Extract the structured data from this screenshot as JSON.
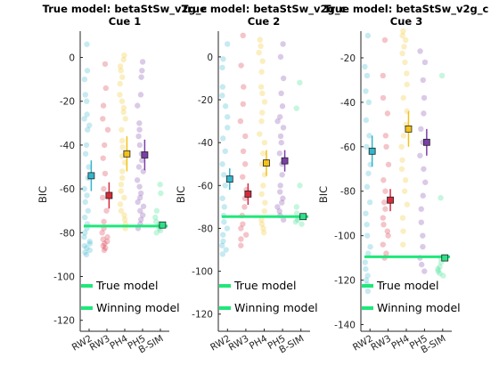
{
  "colors": {
    "RW2": "#33b5cc",
    "RW3": "#d62a3c",
    "PH4": "#f2c21b",
    "PH5": "#7a3fa8",
    "BSIM": "#2ee08a",
    "line": "#1ee87a",
    "axis": "#262626"
  },
  "legend": {
    "true_model": "True model",
    "winning_model": "Winning model"
  },
  "chart_data": [
    {
      "type": "scatter",
      "title": [
        "True model: betaStSw_v2g_c",
        "Cue 1"
      ],
      "ylabel": "BIC",
      "categories": [
        "RW2",
        "RW3",
        "PH4",
        "PH5",
        "B-SIM"
      ],
      "ylim": [
        -125,
        12
      ],
      "yticks": [
        0,
        -20,
        -40,
        -60,
        -80,
        -100,
        -120
      ],
      "true_model_line": -77,
      "means": [
        {
          "model": "RW2",
          "value": -54,
          "err": 7
        },
        {
          "model": "RW3",
          "value": -63,
          "err": 6
        },
        {
          "model": "PH4",
          "value": -44,
          "err": 8
        },
        {
          "model": "PH5",
          "value": -44.5,
          "err": 7
        },
        {
          "model": "B-SIM",
          "value": -76.5,
          "err": 1
        }
      ],
      "points": {
        "RW2": [
          6,
          -6,
          -10,
          -17,
          -20,
          -26,
          -28,
          -31,
          -33,
          -40,
          -44,
          -50,
          -55,
          -60,
          -63,
          -66,
          -70,
          -73,
          -76,
          -78,
          -80,
          -82,
          -84,
          -85,
          -86,
          -87,
          -88,
          -89,
          -90
        ],
        "RW3": [
          -3,
          -14,
          -22,
          -28,
          -33,
          -40,
          -46,
          -53,
          -60,
          -64,
          -70,
          -75,
          -78,
          -80,
          -82,
          -83,
          -84,
          -85,
          -86,
          -87,
          -88
        ],
        "PH4": [
          1,
          -1,
          -4,
          -6,
          -9,
          -12,
          -17,
          -20,
          -23,
          -25,
          -28,
          -33,
          -38,
          -41,
          -45,
          -48,
          -52,
          -55,
          -58,
          -61,
          -64,
          -67,
          -70,
          -72,
          -74,
          -76,
          -78
        ],
        "PH5": [
          -2,
          -6,
          -9,
          -17,
          -22,
          -30,
          -33,
          -36,
          -40,
          -44,
          -47,
          -50,
          -52,
          -56,
          -59,
          -62,
          -64,
          -66,
          -68,
          -70,
          -72,
          -74,
          -76,
          -78
        ],
        "B-SIM": [
          -58,
          -62,
          -70,
          -73,
          -75,
          -76,
          -77,
          -78,
          -79,
          -80
        ]
      }
    },
    {
      "type": "scatter",
      "title": [
        "True model: betaStSw_v2g_c",
        "Cue 2"
      ],
      "ylabel": "BIC",
      "categories": [
        "RW2",
        "RW3",
        "PH4",
        "PH5",
        "B-SIM"
      ],
      "ylim": [
        -128,
        12
      ],
      "yticks": [
        0,
        -20,
        -40,
        -60,
        -80,
        -100,
        -120
      ],
      "true_model_line": -74.5,
      "means": [
        {
          "model": "RW2",
          "value": -57,
          "err": 5
        },
        {
          "model": "RW3",
          "value": -64,
          "err": 5
        },
        {
          "model": "PH4",
          "value": -49.5,
          "err": 6
        },
        {
          "model": "PH5",
          "value": -48.5,
          "err": 5
        },
        {
          "model": "B-SIM",
          "value": -74.5,
          "err": 1
        }
      ],
      "points": {
        "RW2": [
          6,
          -1,
          -5,
          -14,
          -18,
          -23,
          -28,
          -33,
          -38,
          -44,
          -50,
          -55,
          -60,
          -66,
          -70,
          -74,
          -77,
          -80,
          -83,
          -86,
          -88,
          -90,
          -92
        ],
        "RW3": [
          10,
          -4,
          -14,
          -22,
          -30,
          -37,
          -44,
          -50,
          -56,
          -62,
          -66,
          -70,
          -74,
          -78,
          -80,
          -83,
          -85,
          -88
        ],
        "PH4": [
          8,
          5,
          2,
          -2,
          -7,
          -14,
          -17,
          -21,
          -26,
          -30,
          -36,
          -40,
          -45,
          -50,
          -55,
          -60,
          -64,
          -68,
          -72,
          -76,
          -78,
          -80,
          -82
        ],
        "PH5": [
          6,
          0,
          -10,
          -17,
          -23,
          -28,
          -30,
          -33,
          -37,
          -40,
          -45,
          -50,
          -55,
          -60,
          -63,
          -66,
          -68,
          -70,
          -72,
          -74,
          -76
        ],
        "B-SIM": [
          -12,
          -24,
          -60,
          -70,
          -73,
          -75,
          -76,
          -77,
          -78
        ]
      }
    },
    {
      "type": "scatter",
      "title": [
        "True model: betaStSw_v2g_c",
        "Cue 3"
      ],
      "ylabel": "BIC",
      "categories": [
        "RW2",
        "RW3",
        "PH4",
        "PH5",
        "B-SIM"
      ],
      "ylim": [
        -143,
        -8
      ],
      "yticks": [
        -20,
        -40,
        -60,
        -80,
        -100,
        -120,
        -140
      ],
      "true_model_line": -109.5,
      "means": [
        {
          "model": "RW2",
          "value": -62,
          "err": 7
        },
        {
          "model": "RW3",
          "value": -84,
          "err": 5
        },
        {
          "model": "PH4",
          "value": -52,
          "err": 8
        },
        {
          "model": "PH5",
          "value": -58,
          "err": 6
        },
        {
          "model": "B-SIM",
          "value": -110,
          "err": 1
        }
      ],
      "points": {
        "RW2": [
          -10,
          -24,
          -28,
          -35,
          -40,
          -48,
          -55,
          -60,
          -68,
          -72,
          -78,
          -85,
          -90,
          -95,
          -100,
          -105,
          -108,
          -112,
          -115,
          -118,
          -120,
          -122,
          -125
        ],
        "RW3": [
          -12,
          -28,
          -38,
          -45,
          -55,
          -60,
          -68,
          -75,
          -80,
          -85,
          -88,
          -92,
          -95,
          -98,
          -100,
          -104,
          -108,
          -110
        ],
        "PH4": [
          -8,
          -10,
          -12,
          -15,
          -18,
          -22,
          -27,
          -32,
          -38,
          -44,
          -50,
          -55,
          -60,
          -66,
          -70,
          -75,
          -80,
          -86,
          -92,
          -98,
          -104
        ],
        "PH5": [
          -17,
          -22,
          -30,
          -38,
          -45,
          -52,
          -58,
          -64,
          -70,
          -76,
          -82,
          -88,
          -94,
          -100,
          -105,
          -110,
          -113,
          -116
        ],
        "B-SIM": [
          -28,
          -83,
          -110,
          -112,
          -114,
          -115,
          -116,
          -117,
          -118
        ]
      }
    }
  ]
}
